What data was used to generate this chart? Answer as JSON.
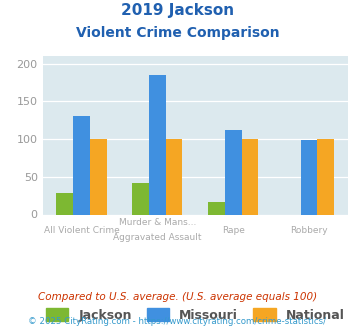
{
  "title_line1": "2019 Jackson",
  "title_line2": "Violent Crime Comparison",
  "jackson": [
    28,
    42,
    17,
    0
  ],
  "missouri": [
    130,
    185,
    112,
    99
  ],
  "national": [
    100,
    100,
    100,
    100
  ],
  "jackson_color": "#7db832",
  "missouri_color": "#4090e0",
  "national_color": "#f5a623",
  "background_color": "#dce9ee",
  "ylim": [
    0,
    210
  ],
  "yticks": [
    0,
    50,
    100,
    150,
    200
  ],
  "legend_labels": [
    "Jackson",
    "Missouri",
    "National"
  ],
  "cat_top": [
    "",
    "Murder & Mans...",
    "",
    ""
  ],
  "cat_bot": [
    "All Violent Crime",
    "Aggravated Assault",
    "Rape",
    "Robbery"
  ],
  "footnote1": "Compared to U.S. average. (U.S. average equals 100)",
  "footnote2": "© 2025 CityRating.com - https://www.cityrating.com/crime-statistics/",
  "title_color": "#2060b0",
  "footnote1_color": "#cc3300",
  "footnote2_color": "#3399cc"
}
